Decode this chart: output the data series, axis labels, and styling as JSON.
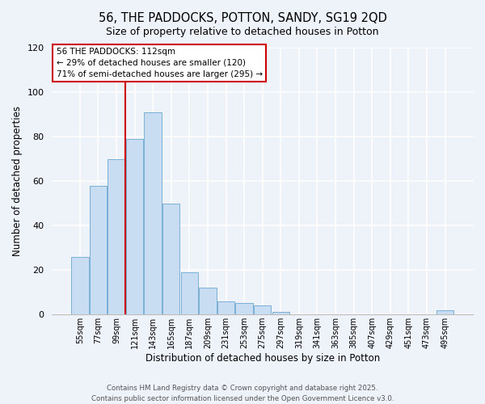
{
  "title": "56, THE PADDOCKS, POTTON, SANDY, SG19 2QD",
  "subtitle": "Size of property relative to detached houses in Potton",
  "xlabel": "Distribution of detached houses by size in Potton",
  "ylabel": "Number of detached properties",
  "bar_color": "#c8ddf2",
  "bar_edge_color": "#7bafd4",
  "background_color": "#eef2f9",
  "categories": [
    "55sqm",
    "77sqm",
    "99sqm",
    "121sqm",
    "143sqm",
    "165sqm",
    "187sqm",
    "209sqm",
    "231sqm",
    "253sqm",
    "275sqm",
    "297sqm",
    "319sqm",
    "341sqm",
    "363sqm",
    "385sqm",
    "407sqm",
    "429sqm",
    "451sqm",
    "473sqm",
    "495sqm"
  ],
  "values": [
    26,
    58,
    70,
    79,
    91,
    50,
    19,
    12,
    6,
    5,
    4,
    1,
    0,
    0,
    0,
    0,
    0,
    0,
    0,
    0,
    2
  ],
  "vline_color": "#cc0000",
  "annotation_text": "56 THE PADDOCKS: 112sqm\n← 29% of detached houses are smaller (120)\n71% of semi-detached houses are larger (295) →",
  "ylim": [
    0,
    120
  ],
  "yticks": [
    0,
    20,
    40,
    60,
    80,
    100,
    120
  ],
  "footer_line1": "Contains HM Land Registry data © Crown copyright and database right 2025.",
  "footer_line2": "Contains public sector information licensed under the Open Government Licence v3.0."
}
